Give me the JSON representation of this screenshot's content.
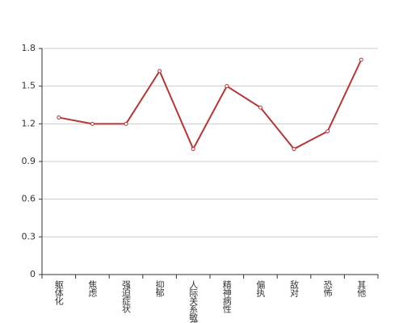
{
  "chart_data": {
    "type": "line",
    "categories": [
      "躯体化",
      "焦虑",
      "强迫症状",
      "抑郁",
      "人际关系敏感",
      "精神病性",
      "偏执",
      "敌对",
      "恐怖",
      "其他"
    ],
    "series": [
      {
        "color": "#b83535",
        "values": [
          1.25,
          1.2,
          1.2,
          1.62,
          1.0,
          1.5,
          1.33,
          1.0,
          1.14,
          1.71
        ]
      }
    ],
    "ylim": [
      0,
      1.8
    ],
    "yticks": [
      0,
      0.3,
      0.6,
      0.9,
      1.2,
      1.5,
      1.8
    ],
    "grid": true
  }
}
